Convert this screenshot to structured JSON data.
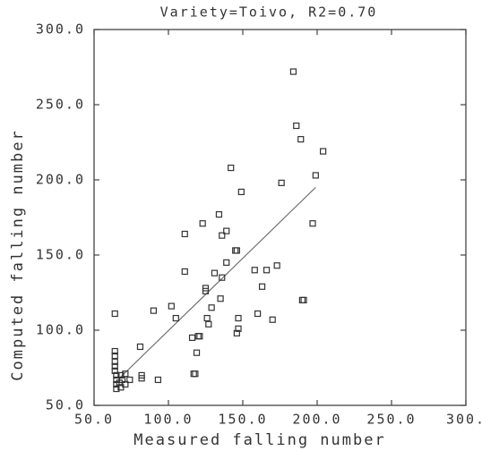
{
  "chart_data": {
    "type": "scatter",
    "title": "Variety=Toivo, R2=0.70",
    "x_label": "Measured falling number",
    "y_label": "Computed falling number",
    "xlim": [
      50,
      300
    ],
    "ylim": [
      50,
      300
    ],
    "xticks": [
      {
        "value": 50,
        "label": "50.0"
      },
      {
        "value": 100,
        "label": "100.0"
      },
      {
        "value": 150,
        "label": "150.0"
      },
      {
        "value": 200,
        "label": "200.0"
      },
      {
        "value": 250,
        "label": "250.0"
      },
      {
        "value": 300,
        "label": "300."
      }
    ],
    "yticks": [
      {
        "value": 50,
        "label": "50.0"
      },
      {
        "value": 100,
        "label": "100.0"
      },
      {
        "value": 150,
        "label": "150.0"
      },
      {
        "value": 200,
        "label": "200.0"
      },
      {
        "value": 250,
        "label": "250.0"
      },
      {
        "value": 300,
        "label": "300.0"
      }
    ],
    "grid": false,
    "color": "#333333",
    "x": [
      64,
      64,
      64,
      64,
      64,
      64,
      65,
      65,
      65,
      65,
      67,
      68,
      69,
      71,
      74,
      71,
      68,
      81,
      82,
      82,
      90,
      93,
      102,
      105,
      111,
      111,
      116,
      117,
      118,
      119,
      120,
      121,
      123,
      125,
      125,
      126,
      127,
      129,
      131,
      134,
      135,
      136,
      136,
      139,
      139,
      142,
      145,
      146,
      146,
      147,
      147,
      149,
      158,
      160,
      163,
      166,
      170,
      173,
      176,
      184,
      186,
      189,
      190,
      191,
      197,
      199,
      204
    ],
    "y": [
      111,
      86,
      83,
      79,
      76,
      73,
      70,
      67,
      64,
      61,
      65,
      62,
      67,
      64,
      67,
      71,
      70,
      89,
      70,
      68,
      113,
      67,
      116,
      108,
      139,
      164,
      95,
      71,
      71,
      85,
      96,
      96,
      171,
      128,
      126,
      108,
      104,
      115,
      138,
      177,
      121,
      163,
      135,
      166,
      145,
      208,
      153,
      153,
      98,
      108,
      101,
      192,
      140,
      111,
      129,
      140,
      107,
      143,
      198,
      272,
      236,
      227,
      120,
      120,
      171,
      203,
      219
    ],
    "fit": {
      "x": [
        67,
        199
      ],
      "y": [
        68,
        195
      ]
    }
  }
}
